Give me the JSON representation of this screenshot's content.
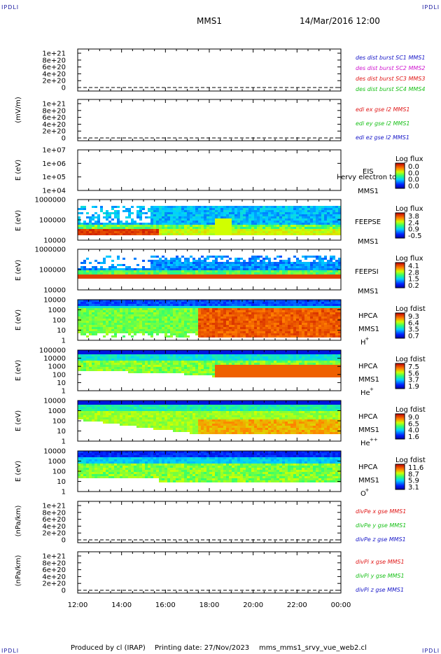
{
  "corners": {
    "tl": "IPDLI",
    "tr": "IPDLI",
    "bl": "IPDLI",
    "br": "IPDLI"
  },
  "header": {
    "title": "MMS1",
    "date": "14/Mar/2016 12:00"
  },
  "footer": {
    "produced": "Produced by cl (IRAP)",
    "printing": "Printing date: 27/Nov/2023",
    "file": "mms_mms1_srvy_vue_web2.cl"
  },
  "colors": {
    "red": "#e01818",
    "green": "#18c018",
    "blue": "#1818c8",
    "magenta": "#d018d0"
  },
  "chart_data": [
    {
      "type": "line",
      "name": "des dist burst",
      "ylabel": "",
      "yticks": [
        "1e+21",
        "8e+20",
        "6e+20",
        "4e+20",
        "2e+20",
        "0"
      ],
      "xticks": [
        "12:00",
        "14:00",
        "16:00",
        "18:00",
        "20:00",
        "22:00",
        "00:00"
      ],
      "legend": [
        {
          "text": "des dist burst SC1 MMS1",
          "color": "#1818c8"
        },
        {
          "text": "des dist burst SC2 MMS2",
          "color": "#d018d0"
        },
        {
          "text": "des dist burst SC3 MMS3",
          "color": "#e01818"
        },
        {
          "text": "des dist burst SC4 MMS4",
          "color": "#18c018"
        }
      ]
    },
    {
      "type": "line",
      "name": "edi",
      "ylabel": "(mV/m)",
      "yticks": [
        "1e+21",
        "8e+20",
        "6e+20",
        "4e+20",
        "2e+20",
        "0"
      ],
      "legend": [
        {
          "text": "edi ex gse l2 MMS1",
          "color": "#e01818"
        },
        {
          "text": "edi ey gse l2 MMS1",
          "color": "#18c018"
        },
        {
          "text": "edi ez gse l2 MMS1",
          "color": "#1818c8"
        }
      ]
    },
    {
      "type": "heatmap",
      "name": "EIS",
      "ylabel": "E (eV)",
      "yticks": [
        "1e+07",
        "1e+06",
        "1e+05",
        "1e+04"
      ],
      "yscale": "log",
      "labels": [
        "EIS",
        "MMS1"
      ],
      "overlay": "l ervy electron to",
      "cbar_title": "Log flux",
      "cbar_ticks": [
        "0.0",
        "0.0",
        "0.0",
        "0.0"
      ]
    },
    {
      "type": "heatmap",
      "name": "FEEPSE",
      "ylabel": "E (eV)",
      "yticks": [
        "1000000",
        "100000",
        "10000"
      ],
      "yscale": "log",
      "labels": [
        "FEEPSE",
        "MMS1"
      ],
      "cbar_title": "Log flux",
      "cbar_ticks": [
        "3.8",
        "2.4",
        "0.9",
        "-0.5"
      ]
    },
    {
      "type": "heatmap",
      "name": "FEEPSI",
      "ylabel": "E (eV)",
      "yticks": [
        "1000000",
        "100000",
        "10000"
      ],
      "yscale": "log",
      "labels": [
        "FEEPSI",
        "MMS1"
      ],
      "cbar_title": "Log flux",
      "cbar_ticks": [
        "4.1",
        "2.8",
        "1.5",
        "0.2"
      ]
    },
    {
      "type": "heatmap",
      "name": "HPCA H+",
      "ylabel": "E (eV)",
      "yticks": [
        "10000",
        "1000",
        "100",
        "10",
        "1"
      ],
      "yscale": "log",
      "labels": [
        "HPCA",
        "MMS1",
        "H",
        "+"
      ],
      "cbar_title": "Log fdist",
      "cbar_ticks": [
        "9.3",
        "6.4",
        "3.5",
        "0.7"
      ]
    },
    {
      "type": "heatmap",
      "name": "HPCA He+",
      "ylabel": "E (eV)",
      "yticks": [
        "100000",
        "10000",
        "1000",
        "100",
        "10",
        "1"
      ],
      "yscale": "log",
      "labels": [
        "HPCA",
        "MMS1",
        "He",
        "+"
      ],
      "cbar_title": "Log fdist",
      "cbar_ticks": [
        "7.5",
        "5.6",
        "3.7",
        "1.9"
      ]
    },
    {
      "type": "heatmap",
      "name": "HPCA He++",
      "ylabel": "E (eV)",
      "yticks": [
        "10000",
        "1000",
        "100",
        "10",
        "1"
      ],
      "yscale": "log",
      "labels": [
        "HPCA",
        "MMS1",
        "He",
        "++"
      ],
      "cbar_title": "Log fdist",
      "cbar_ticks": [
        "9.0",
        "6.5",
        "4.0",
        "1.6"
      ]
    },
    {
      "type": "heatmap",
      "name": "HPCA O+",
      "ylabel": "E (eV)",
      "yticks": [
        "10000",
        "1000",
        "100",
        "10",
        "1"
      ],
      "yscale": "log",
      "labels": [
        "HPCA",
        "MMS1",
        "O",
        "+"
      ],
      "cbar_title": "Log fdist",
      "cbar_ticks": [
        "11.6",
        "8.7",
        "5.9",
        "3.1"
      ]
    },
    {
      "type": "line",
      "name": "divPe",
      "ylabel": "(nPa/km)",
      "yticks": [
        "1e+21",
        "8e+20",
        "6e+20",
        "4e+20",
        "2e+20",
        "0"
      ],
      "legend": [
        {
          "text": "divPe x gse MMS1",
          "color": "#e01818"
        },
        {
          "text": "divPe y gse MMS1",
          "color": "#18c018"
        },
        {
          "text": "divPe z gse MMS1",
          "color": "#1818c8"
        }
      ]
    },
    {
      "type": "line",
      "name": "divPi",
      "ylabel": "(nPa/km)",
      "yticks": [
        "1e+21",
        "8e+20",
        "6e+20",
        "4e+20",
        "2e+20",
        "0"
      ],
      "legend": [
        {
          "text": "divPi x gse MMS1",
          "color": "#e01818"
        },
        {
          "text": "divPi y gse MMS1",
          "color": "#18c018"
        },
        {
          "text": "divPi z gse MMS1",
          "color": "#1818c8"
        }
      ]
    }
  ]
}
